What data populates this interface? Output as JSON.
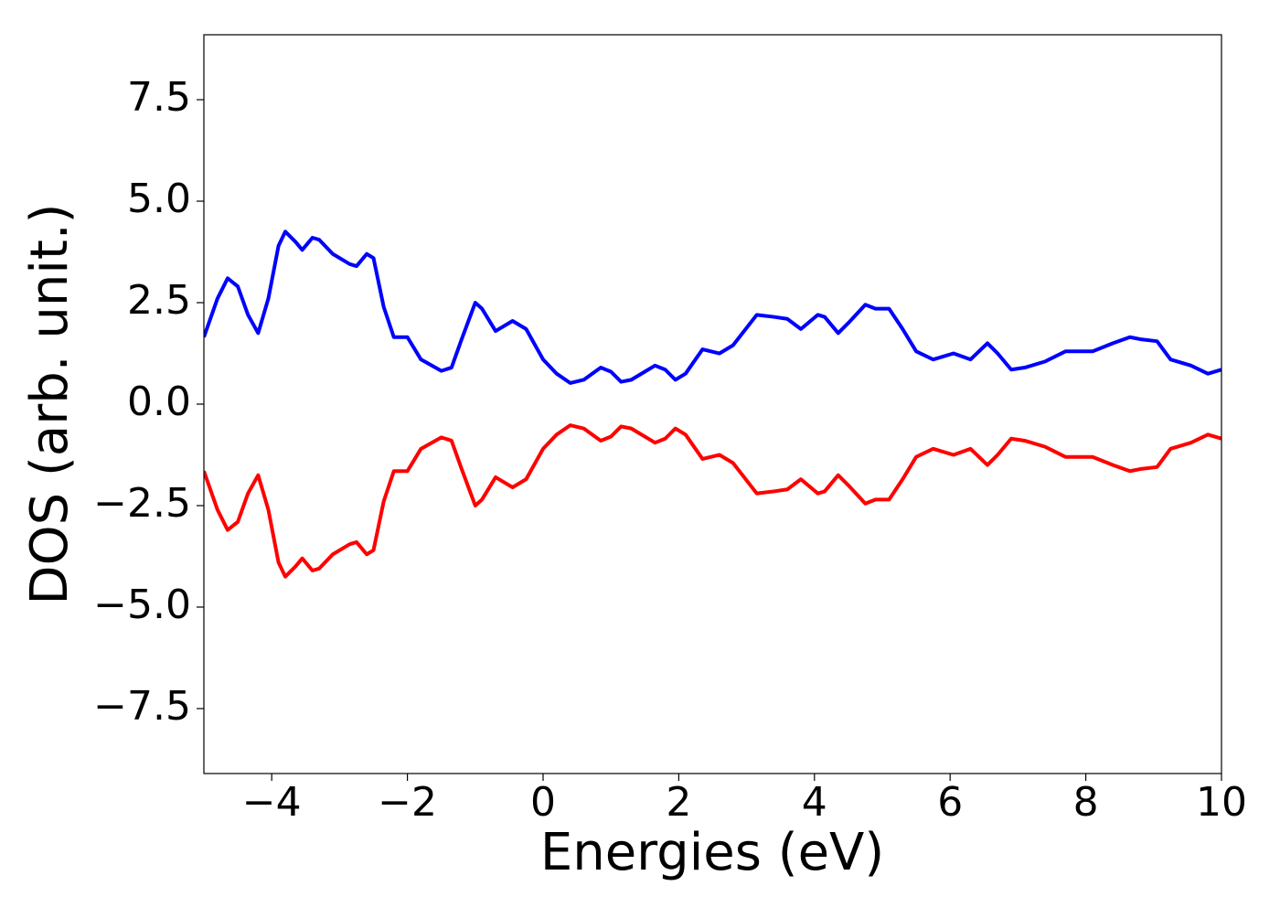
{
  "chart_data": {
    "type": "line",
    "xlabel": "Energies (eV)",
    "ylabel": "DOS (arb. unit.)",
    "xlim": [
      -5,
      10
    ],
    "ylim": [
      -9.1,
      9.1
    ],
    "xticks": [
      {
        "value": -4,
        "label": "−4"
      },
      {
        "value": -2,
        "label": "−2"
      },
      0,
      2,
      4,
      6,
      8,
      10
    ],
    "yticks": [
      {
        "value": -7.5,
        "label": "−7.5"
      },
      {
        "value": -5,
        "label": "−5.0"
      },
      {
        "value": -2.5,
        "label": "−2.5"
      },
      {
        "value": 0,
        "label": "0.0"
      },
      2.5,
      {
        "value": 5,
        "label": "5.0"
      },
      7.5
    ],
    "x": [
      -5,
      -4.8,
      -4.65,
      -4.5,
      -4.35,
      -4.2,
      -4.05,
      -3.9,
      -3.8,
      -3.65,
      -3.55,
      -3.4,
      -3.3,
      -3.1,
      -2.85,
      -2.75,
      -2.6,
      -2.5,
      -2.35,
      -2.2,
      -2.0,
      -1.8,
      -1.5,
      -1.35,
      -1.2,
      -1.0,
      -0.9,
      -0.7,
      -0.45,
      -0.25,
      0,
      0.2,
      0.4,
      0.6,
      0.85,
      1.0,
      1.15,
      1.3,
      1.5,
      1.65,
      1.8,
      1.95,
      2.1,
      2.35,
      2.6,
      2.8,
      3.15,
      3.4,
      3.6,
      3.8,
      4.05,
      4.15,
      4.35,
      4.5,
      4.75,
      4.9,
      5.1,
      5.3,
      5.5,
      5.75,
      6.05,
      6.3,
      6.55,
      6.7,
      6.9,
      7.1,
      7.4,
      7.7,
      8.1,
      8.4,
      8.65,
      8.8,
      9.05,
      9.25,
      9.55,
      9.8,
      10
    ],
    "series": [
      {
        "color": "#0000ff",
        "values": [
          1.65,
          2.6,
          3.1,
          2.9,
          2.2,
          1.75,
          2.6,
          3.9,
          4.25,
          4.0,
          3.8,
          4.1,
          4.05,
          3.7,
          3.45,
          3.4,
          3.7,
          3.6,
          2.4,
          1.65,
          1.65,
          1.1,
          0.82,
          0.9,
          1.6,
          2.5,
          2.35,
          1.8,
          2.05,
          1.85,
          1.1,
          0.75,
          0.52,
          0.6,
          0.9,
          0.8,
          0.55,
          0.6,
          0.8,
          0.95,
          0.85,
          0.6,
          0.75,
          1.35,
          1.25,
          1.45,
          2.2,
          2.15,
          2.1,
          1.85,
          2.2,
          2.15,
          1.75,
          2.0,
          2.45,
          2.35,
          2.35,
          1.85,
          1.3,
          1.1,
          1.25,
          1.1,
          1.5,
          1.25,
          0.85,
          0.9,
          1.05,
          1.3,
          1.3,
          1.5,
          1.65,
          1.6,
          1.55,
          1.1,
          0.95,
          0.75,
          0.85
        ]
      },
      {
        "color": "#ff0000",
        "values": [
          -1.65,
          -2.6,
          -3.1,
          -2.9,
          -2.2,
          -1.75,
          -2.6,
          -3.9,
          -4.25,
          -4.0,
          -3.8,
          -4.1,
          -4.05,
          -3.7,
          -3.45,
          -3.4,
          -3.7,
          -3.6,
          -2.4,
          -1.65,
          -1.65,
          -1.1,
          -0.82,
          -0.9,
          -1.6,
          -2.5,
          -2.35,
          -1.8,
          -2.05,
          -1.85,
          -1.1,
          -0.75,
          -0.52,
          -0.6,
          -0.9,
          -0.8,
          -0.55,
          -0.6,
          -0.8,
          -0.95,
          -0.85,
          -0.6,
          -0.75,
          -1.35,
          -1.25,
          -1.45,
          -2.2,
          -2.15,
          -2.1,
          -1.85,
          -2.2,
          -2.15,
          -1.75,
          -2.0,
          -2.45,
          -2.35,
          -2.35,
          -1.85,
          -1.3,
          -1.1,
          -1.25,
          -1.1,
          -1.5,
          -1.25,
          -0.85,
          -0.9,
          -1.05,
          -1.3,
          -1.3,
          -1.5,
          -1.65,
          -1.6,
          -1.55,
          -1.1,
          -0.95,
          -0.75,
          -0.85
        ]
      }
    ]
  }
}
